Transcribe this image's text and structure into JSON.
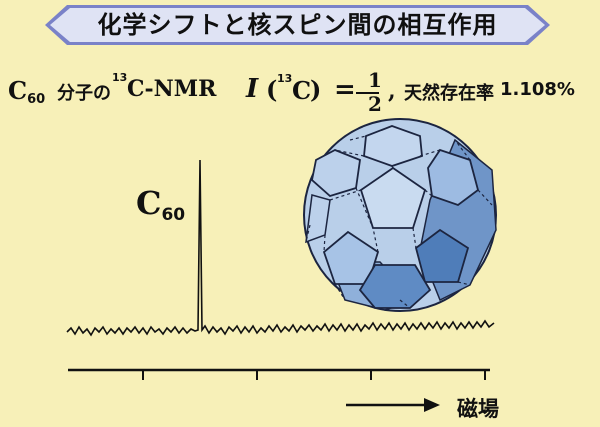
{
  "title": "化学シフトと核スピン間の相互作用",
  "subtitle": {
    "c_symbol": "C",
    "c_sub": "60",
    "molecule_suffix": "分子の",
    "isotope_sup": "13",
    "nmr_text": "C-NMR",
    "spin_symbol": "I",
    "spin_arg_open": "(",
    "spin_arg_sup": "13",
    "spin_arg_element": "C",
    "spin_arg_close": ")",
    "equals": "=",
    "fraction_numerator": "1",
    "fraction_denominator": "2",
    "comma": ",",
    "abundance_label": "天然存在率",
    "abundance_value": "1.108%"
  },
  "spectrum": {
    "peak_label_symbol": "C",
    "peak_label_sub": "60",
    "axis_label": "磁場"
  },
  "colors": {
    "background": "#f7f0b8",
    "banner_fill": "#dfe3f4",
    "banner_edge": "#7a82c8",
    "ball_light": "#b9cfe9",
    "ball_dark": "#5b86bf",
    "ball_line": "#1c2540"
  }
}
